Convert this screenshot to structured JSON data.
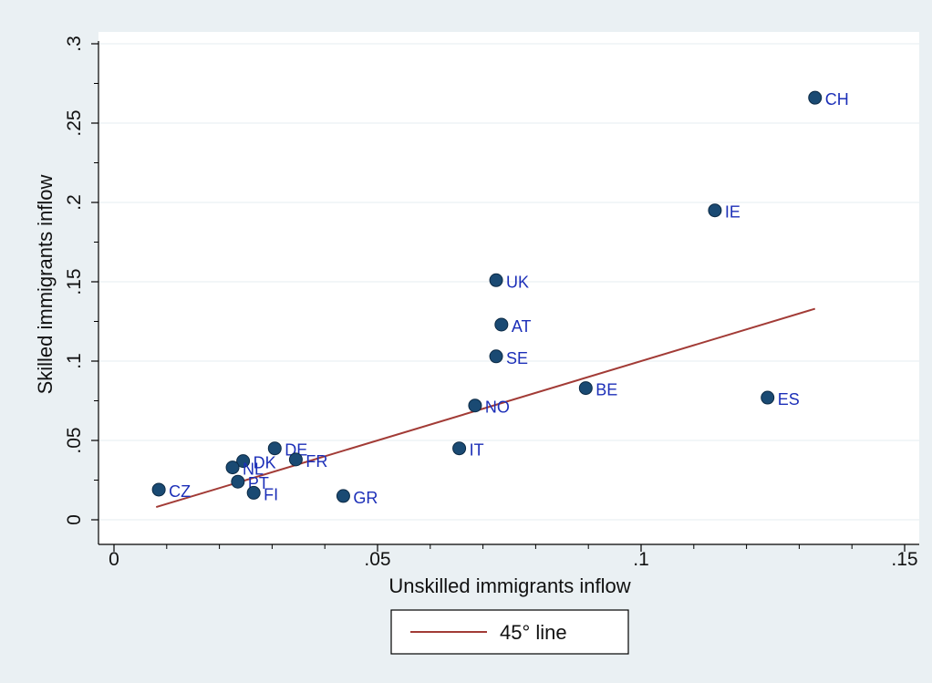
{
  "chart_data": {
    "type": "scatter",
    "xlabel": "Unskilled immigrants inflow",
    "ylabel": "Skilled  immigrants inflow",
    "xlim": [
      0,
      0.15
    ],
    "ylim": [
      0,
      0.3
    ],
    "x_ticks": [
      0,
      0.05,
      0.1,
      0.15
    ],
    "x_tick_labels": [
      "0",
      ".05",
      ".1",
      ".15"
    ],
    "y_ticks": [
      0,
      0.05,
      0.1,
      0.15,
      0.2,
      0.25,
      0.3
    ],
    "y_tick_labels": [
      "0",
      ".05",
      ".1",
      ".15",
      ".2",
      ".25",
      ".3"
    ],
    "grid": "horizontal",
    "legend_position": "bottom",
    "points": [
      {
        "label": "CH",
        "x": 0.133,
        "y": 0.266
      },
      {
        "label": "IE",
        "x": 0.114,
        "y": 0.195
      },
      {
        "label": "UK",
        "x": 0.0725,
        "y": 0.151
      },
      {
        "label": "AT",
        "x": 0.0735,
        "y": 0.123
      },
      {
        "label": "SE",
        "x": 0.0725,
        "y": 0.103
      },
      {
        "label": "BE",
        "x": 0.0895,
        "y": 0.083
      },
      {
        "label": "ES",
        "x": 0.124,
        "y": 0.077
      },
      {
        "label": "NO",
        "x": 0.0685,
        "y": 0.072
      },
      {
        "label": "IT",
        "x": 0.0655,
        "y": 0.045
      },
      {
        "label": "DE",
        "x": 0.0305,
        "y": 0.045
      },
      {
        "label": "FR",
        "x": 0.0345,
        "y": 0.038
      },
      {
        "label": "DK",
        "x": 0.0245,
        "y": 0.037
      },
      {
        "label": "NL",
        "x": 0.0225,
        "y": 0.033
      },
      {
        "label": "PT",
        "x": 0.0235,
        "y": 0.024
      },
      {
        "label": "FI",
        "x": 0.0265,
        "y": 0.017
      },
      {
        "label": "GR",
        "x": 0.0435,
        "y": 0.015
      },
      {
        "label": "CZ",
        "x": 0.0085,
        "y": 0.019
      }
    ],
    "line": {
      "name": "45° line",
      "x": [
        0.008,
        0.133
      ],
      "y": [
        0.008,
        0.133
      ]
    },
    "colors": {
      "marker": "#1a4a73",
      "label": "#1c2fb8",
      "line": "#a23b36",
      "background": "#eaf0f3",
      "plot_background": "#ffffff",
      "grid": "#e6edf1"
    }
  }
}
